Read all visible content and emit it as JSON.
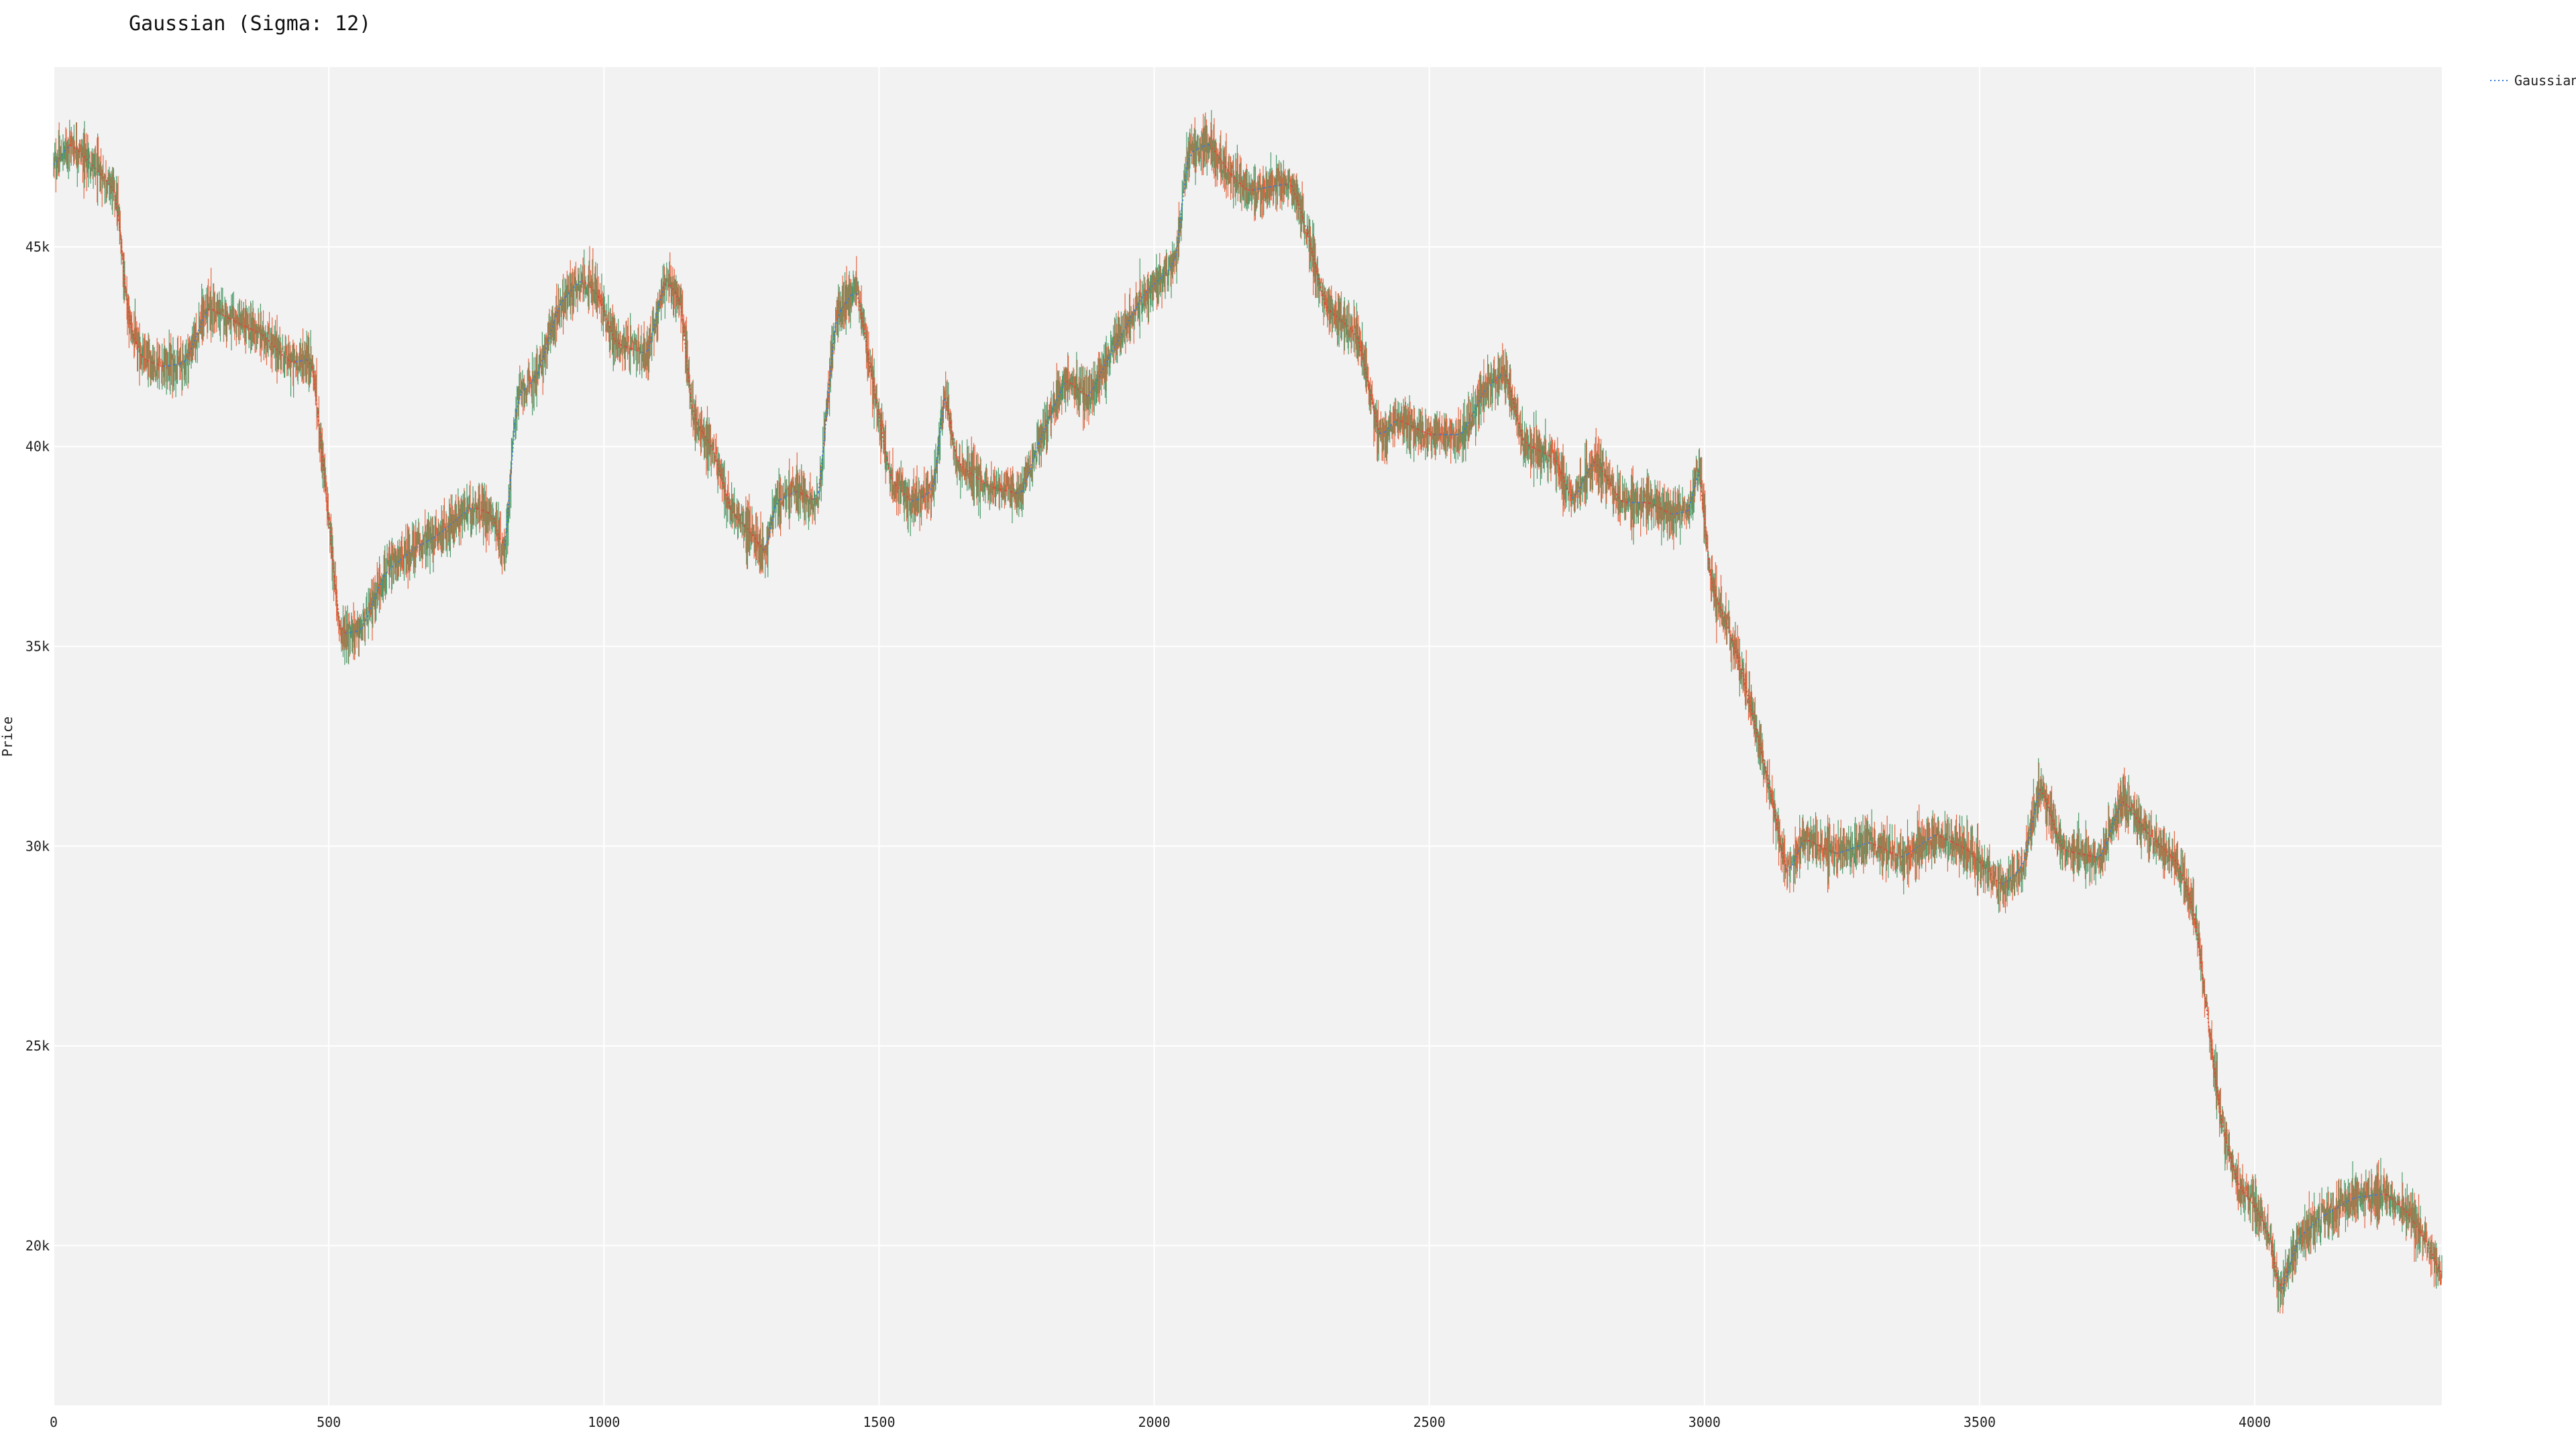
{
  "chart_data": {
    "type": "candlestick",
    "title": "Gaussian (Sigma: 12)",
    "xlabel": "",
    "ylabel": "Price",
    "xlim": [
      0,
      4340
    ],
    "ylim": [
      16000,
      49500
    ],
    "x_ticks": [
      0,
      500,
      1000,
      1500,
      2000,
      2500,
      3000,
      3500,
      4000
    ],
    "x_tick_labels": [
      "0",
      "500",
      "1000",
      "1500",
      "2000",
      "2500",
      "3000",
      "3500",
      "4000"
    ],
    "y_ticks": [
      20000,
      25000,
      30000,
      35000,
      40000,
      45000
    ],
    "y_tick_labels": [
      "20k",
      "25k",
      "30k",
      "35k",
      "40k",
      "45k"
    ],
    "grid": true,
    "legend_position": "top-right",
    "colors": {
      "up": "#4a9a68",
      "down": "#e5653f",
      "smooth_up": "#3a7bd5",
      "smooth_down": "#d9453a",
      "plot_bg": "#f2f2f2",
      "grid": "#ffffff"
    },
    "series": [
      {
        "name": "Gaussian",
        "style": "dotted",
        "anchors": [
          [
            0,
            47000
          ],
          [
            30,
            47600
          ],
          [
            60,
            47200
          ],
          [
            100,
            46600
          ],
          [
            115,
            46300
          ],
          [
            135,
            43200
          ],
          [
            160,
            42200
          ],
          [
            200,
            42000
          ],
          [
            240,
            42100
          ],
          [
            280,
            43500
          ],
          [
            320,
            43200
          ],
          [
            380,
            42800
          ],
          [
            430,
            42100
          ],
          [
            470,
            42200
          ],
          [
            500,
            38200
          ],
          [
            520,
            35300
          ],
          [
            560,
            35400
          ],
          [
            600,
            36800
          ],
          [
            650,
            37400
          ],
          [
            700,
            37800
          ],
          [
            760,
            38500
          ],
          [
            800,
            38300
          ],
          [
            820,
            37100
          ],
          [
            840,
            41200
          ],
          [
            880,
            41800
          ],
          [
            920,
            43600
          ],
          [
            960,
            44200
          ],
          [
            990,
            43800
          ],
          [
            1020,
            42600
          ],
          [
            1080,
            42300
          ],
          [
            1110,
            44200
          ],
          [
            1140,
            43700
          ],
          [
            1160,
            40800
          ],
          [
            1200,
            39900
          ],
          [
            1230,
            38400
          ],
          [
            1270,
            37800
          ],
          [
            1295,
            37300
          ],
          [
            1310,
            38600
          ],
          [
            1350,
            38900
          ],
          [
            1390,
            38600
          ],
          [
            1420,
            43200
          ],
          [
            1460,
            44000
          ],
          [
            1480,
            42300
          ],
          [
            1520,
            39200
          ],
          [
            1560,
            38600
          ],
          [
            1600,
            38900
          ],
          [
            1620,
            41600
          ],
          [
            1640,
            39600
          ],
          [
            1700,
            39000
          ],
          [
            1760,
            38800
          ],
          [
            1790,
            40100
          ],
          [
            1840,
            41700
          ],
          [
            1880,
            41200
          ],
          [
            1920,
            42300
          ],
          [
            1980,
            43800
          ],
          [
            2040,
            44600
          ],
          [
            2060,
            47300
          ],
          [
            2100,
            47600
          ],
          [
            2140,
            46800
          ],
          [
            2170,
            46400
          ],
          [
            2210,
            46500
          ],
          [
            2250,
            46600
          ],
          [
            2280,
            45300
          ],
          [
            2310,
            43500
          ],
          [
            2370,
            42800
          ],
          [
            2410,
            40200
          ],
          [
            2440,
            40700
          ],
          [
            2500,
            40300
          ],
          [
            2560,
            40300
          ],
          [
            2600,
            41400
          ],
          [
            2640,
            41900
          ],
          [
            2670,
            40100
          ],
          [
            2730,
            39700
          ],
          [
            2760,
            38600
          ],
          [
            2800,
            39700
          ],
          [
            2850,
            38600
          ],
          [
            2900,
            38600
          ],
          [
            2940,
            38300
          ],
          [
            2975,
            38400
          ],
          [
            2990,
            39800
          ],
          [
            3010,
            36600
          ],
          [
            3040,
            35600
          ],
          [
            3070,
            34300
          ],
          [
            3120,
            31400
          ],
          [
            3150,
            29200
          ],
          [
            3180,
            30200
          ],
          [
            3240,
            29800
          ],
          [
            3300,
            30100
          ],
          [
            3360,
            29700
          ],
          [
            3420,
            30300
          ],
          [
            3480,
            29900
          ],
          [
            3540,
            29000
          ],
          [
            3580,
            29500
          ],
          [
            3610,
            31600
          ],
          [
            3650,
            29900
          ],
          [
            3720,
            29700
          ],
          [
            3760,
            31200
          ],
          [
            3800,
            30400
          ],
          [
            3860,
            29600
          ],
          [
            3890,
            28400
          ],
          [
            3910,
            26200
          ],
          [
            3940,
            23000
          ],
          [
            3970,
            21500
          ],
          [
            4000,
            21000
          ],
          [
            4030,
            20200
          ],
          [
            4045,
            18700
          ],
          [
            4080,
            20200
          ],
          [
            4120,
            20700
          ],
          [
            4180,
            21200
          ],
          [
            4240,
            21300
          ],
          [
            4280,
            20800
          ],
          [
            4320,
            19900
          ],
          [
            4340,
            19200
          ]
        ]
      }
    ]
  }
}
